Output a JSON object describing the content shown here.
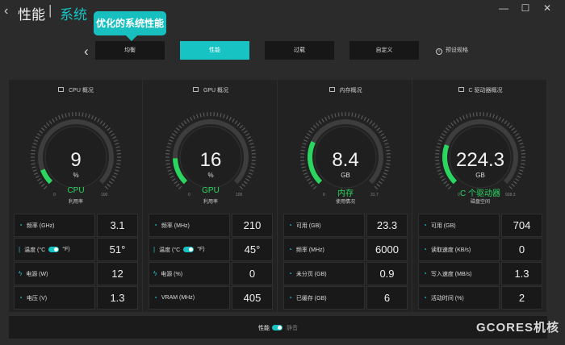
{
  "header": {
    "title": "性能",
    "separator": "|",
    "subtitle": "系统",
    "back_icon": "back-icon",
    "window_controls": [
      "—",
      "☐",
      "✕"
    ]
  },
  "tooltip": {
    "text": "优化的系统性能"
  },
  "modes": {
    "items": [
      "均衡",
      "性能",
      "过载",
      "自定义"
    ],
    "active_index": 1,
    "preset_label": "预设规格"
  },
  "accent_color": "#17c3c3",
  "gauge_color": "#2ad65f",
  "sections": [
    {
      "title": "CPU 概况",
      "value": "9",
      "unit": "%",
      "name": "CPU",
      "sub": "利用率",
      "min": "0",
      "max": "100",
      "fraction": 0.09,
      "stats": [
        {
          "label": "频率 (GHz)",
          "value": "3.1",
          "icon": "gauge-icon"
        },
        {
          "label": "温度 (°C",
          "label_suffix": "°F)",
          "value": "51°",
          "icon": "thermometer-icon",
          "toggle": true
        },
        {
          "label": "电源 (W)",
          "value": "12",
          "icon": "bolt-icon"
        },
        {
          "label": "电压 (V)",
          "value": "1.3",
          "icon": "gauge-icon"
        }
      ]
    },
    {
      "title": "GPU 概况",
      "value": "16",
      "unit": "%",
      "name": "GPU",
      "sub": "利用率",
      "min": "0",
      "max": "100",
      "fraction": 0.16,
      "stats": [
        {
          "label": "频率 (MHz)",
          "value": "210",
          "icon": "gauge-icon"
        },
        {
          "label": "温度 (°C",
          "label_suffix": "°F)",
          "value": "45°",
          "icon": "thermometer-icon",
          "toggle": true
        },
        {
          "label": "电源 (%)",
          "value": "0",
          "icon": "bolt-icon"
        },
        {
          "label": "VRAM (MHz)",
          "value": "405",
          "icon": "gauge-icon"
        }
      ]
    },
    {
      "title": "内存概况",
      "value": "8.4",
      "unit": "GB",
      "name": "内存",
      "sub": "使用情况",
      "min": "0",
      "max": "31.7",
      "fraction": 0.26,
      "stats": [
        {
          "label": "可用 (GB)",
          "value": "23.3",
          "icon": "gauge-icon"
        },
        {
          "label": "频率 (MHz)",
          "value": "6000",
          "icon": "gauge-icon"
        },
        {
          "label": "未分页 (GB)",
          "value": "0.9",
          "icon": "gauge-icon"
        },
        {
          "label": "已缓存 (GB)",
          "value": "6",
          "icon": "gauge-icon"
        }
      ]
    },
    {
      "title": "C 驱动器概况",
      "value": "224.3",
      "unit": "GB",
      "name": "C 个驱动器",
      "sub": "磁盘空间",
      "min": "0",
      "max": "928.3",
      "fraction": 0.24,
      "stats": [
        {
          "label": "可用 (GB)",
          "value": "704",
          "icon": "gauge-icon"
        },
        {
          "label": "读取速度 (KB/s)",
          "value": "0",
          "icon": "gauge-icon"
        },
        {
          "label": "写入速度 (MB/s)",
          "value": "1.3",
          "icon": "gauge-icon"
        },
        {
          "label": "活动时间 (%)",
          "value": "2",
          "icon": "gauge-icon"
        }
      ]
    }
  ],
  "footer": {
    "performance_label": "性能",
    "silent_label": "静音"
  },
  "watermark": "GCORES机核"
}
